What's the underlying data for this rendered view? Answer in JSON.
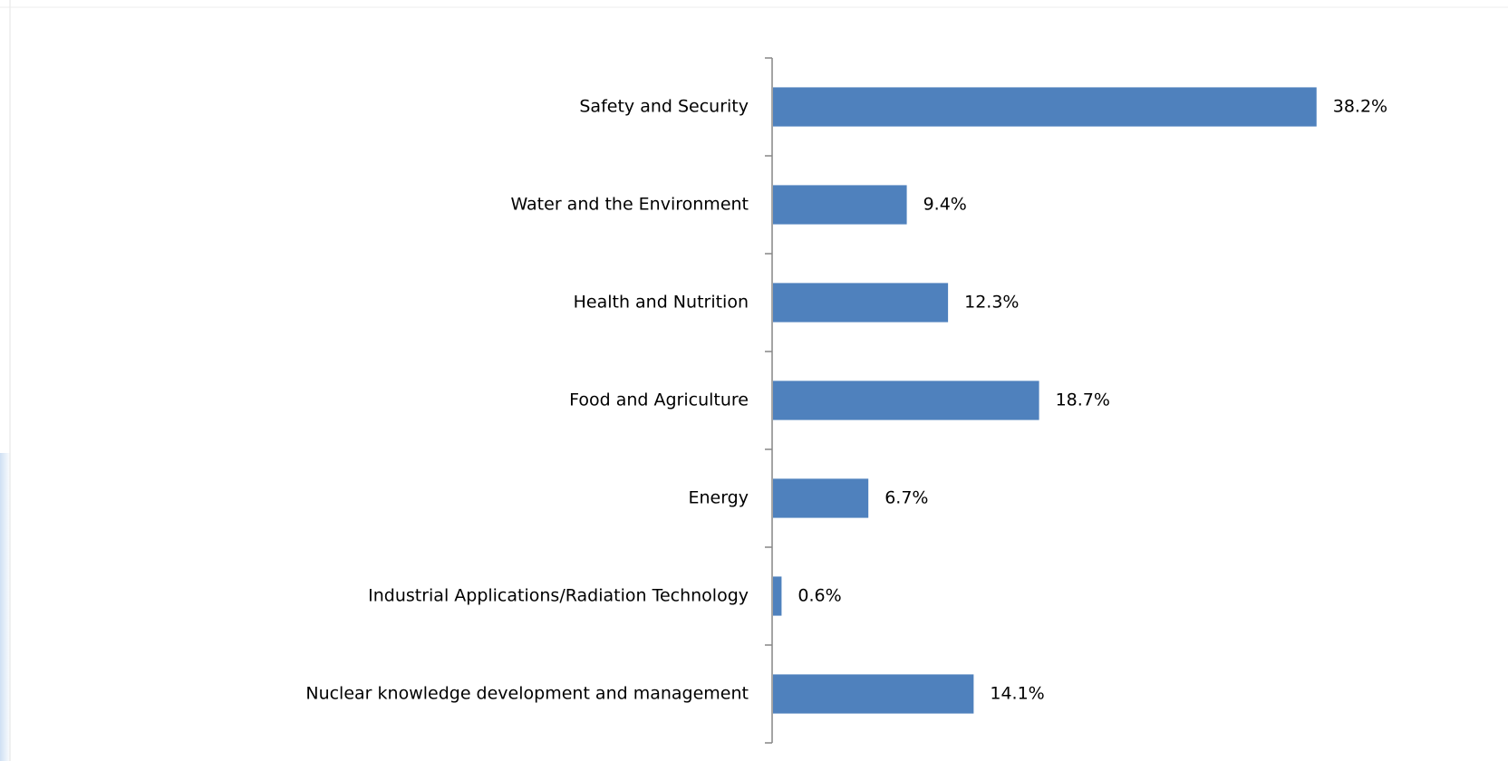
{
  "chart_data": {
    "type": "bar",
    "orientation": "horizontal",
    "categories": [
      "Safety and Security",
      "Water and the Environment",
      "Health and Nutrition",
      "Food and Agriculture",
      "Energy",
      "Industrial Applications/Radiation Technology",
      "Nuclear knowledge development and management"
    ],
    "values": [
      38.2,
      9.4,
      12.3,
      18.7,
      6.7,
      0.6,
      14.1
    ],
    "value_labels": [
      "38.2%",
      "9.4%",
      "12.3%",
      "18.7%",
      "6.7%",
      "0.6%",
      "14.1%"
    ],
    "color": "#4f81bd"
  }
}
